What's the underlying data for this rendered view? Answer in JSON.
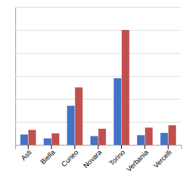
{
  "chart_data": {
    "type": "bar",
    "categories": [
      "Asti",
      "Biella",
      "Cuneo",
      "Novara",
      "Torino",
      "Verbania",
      "Vercelli"
    ],
    "series": [
      {
        "color": "#4472C4",
        "values": [
          4.5,
          2.8,
          17.0,
          3.8,
          29.0,
          4.2,
          5.2
        ]
      },
      {
        "color": "#C0504D",
        "values": [
          6.5,
          5.0,
          25.0,
          7.0,
          50.0,
          7.5,
          8.5
        ]
      }
    ],
    "ylim": [
      0,
      60
    ],
    "yticks": [
      0,
      10,
      20,
      30,
      40,
      50,
      60
    ],
    "grid": true,
    "tick_labels": "x"
  }
}
